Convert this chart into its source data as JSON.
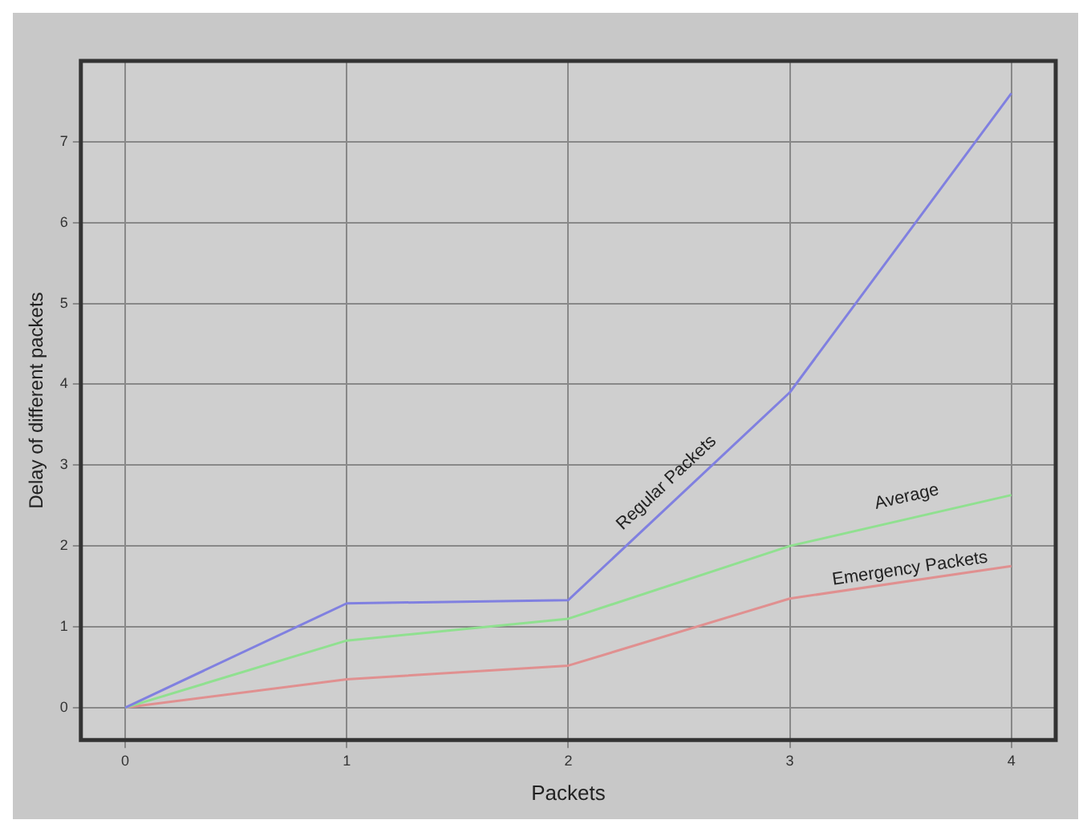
{
  "chart_data": {
    "type": "line",
    "xlabel": "Packets",
    "ylabel": "Delay of different packets",
    "x": [
      0,
      1,
      2,
      3,
      4
    ],
    "series": [
      {
        "name": "Regular Packets",
        "color": "#8080e0",
        "values": [
          0,
          1.29,
          1.33,
          3.9,
          7.6
        ]
      },
      {
        "name": "Average",
        "color": "#90e090",
        "values": [
          0,
          0.83,
          1.1,
          2.0,
          2.63
        ]
      },
      {
        "name": "Emergency Packets",
        "color": "#e09090",
        "values": [
          0,
          0.35,
          0.52,
          1.35,
          1.75
        ]
      }
    ],
    "xlim": [
      -0.2,
      4.2
    ],
    "ylim": [
      -0.4,
      8
    ],
    "xticks": [
      0,
      1,
      2,
      3,
      4
    ],
    "yticks": [
      0,
      1,
      2,
      3,
      4,
      5,
      6,
      7
    ],
    "grid": true,
    "legend": false,
    "marker": "none",
    "line_style": "solid"
  }
}
